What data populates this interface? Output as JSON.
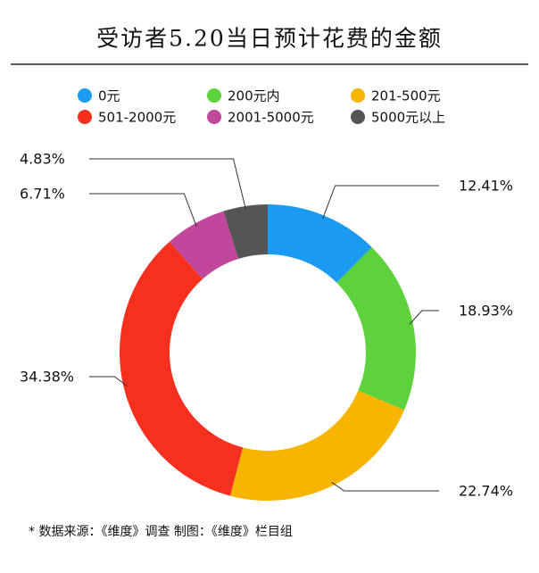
{
  "chart_data": {
    "type": "donut",
    "title": "受访者5.20当日预计花费的金额",
    "categories": [
      "0元",
      "200元内",
      "201-500元",
      "501-2000元",
      "2001-5000元",
      "5000元以上"
    ],
    "values": [
      12.41,
      18.93,
      22.74,
      34.38,
      6.71,
      4.83
    ],
    "value_labels": [
      "12.41%",
      "18.93%",
      "22.74%",
      "34.38%",
      "6.71%",
      "4.83%"
    ],
    "colors": [
      "#1a9af0",
      "#5ed23c",
      "#f7b500",
      "#f5301e",
      "#c0479b",
      "#555555"
    ],
    "footnote": "* 数据来源：《维度》调查  制图：《维度》栏目组"
  }
}
